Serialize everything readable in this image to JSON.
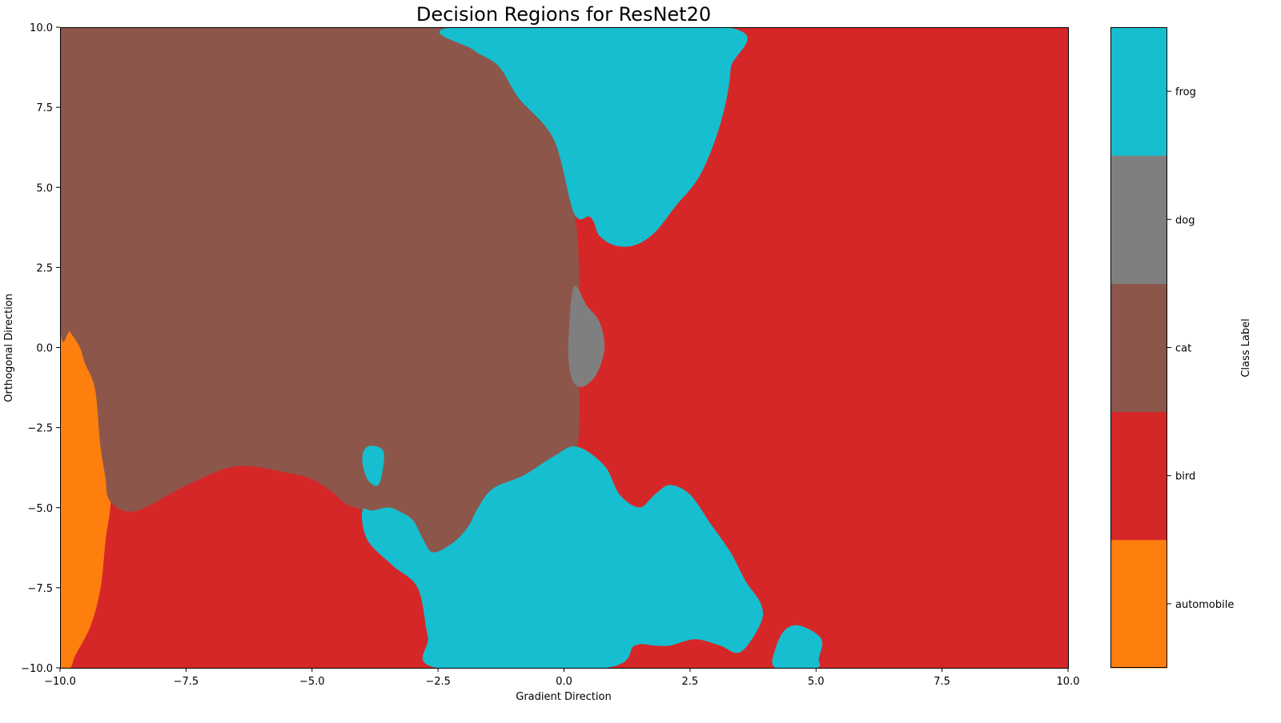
{
  "chart_data": {
    "type": "heatmap",
    "title": "Decision Regions for ResNet20",
    "xlabel": "Gradient Direction",
    "ylabel": "Orthogonal Direction",
    "xlim": [
      -10,
      10
    ],
    "ylim": [
      -10,
      10
    ],
    "xticks": [
      -10,
      -7.5,
      -5,
      -2.5,
      0,
      2.5,
      5,
      7.5,
      10
    ],
    "yticks": [
      -10,
      -7.5,
      -5,
      -2.5,
      0,
      2.5,
      5,
      7.5,
      10
    ],
    "xtick_labels": [
      "−10.0",
      "−7.5",
      "−5.0",
      "−2.5",
      "0.0",
      "2.5",
      "5.0",
      "7.5",
      "10.0"
    ],
    "ytick_labels": [
      "−10.0",
      "−7.5",
      "−5.0",
      "−2.5",
      "0.0",
      "2.5",
      "5.0",
      "7.5",
      "10.0"
    ],
    "grid": false,
    "background_class": "bird",
    "classes": [
      {
        "label": "automobile",
        "color": "#ff7f0e"
      },
      {
        "label": "bird",
        "color": "#d62728"
      },
      {
        "label": "cat",
        "color": "#8c564b"
      },
      {
        "label": "dog",
        "color": "#7f7f7f"
      },
      {
        "label": "frog",
        "color": "#17becf"
      }
    ],
    "colorbar": {
      "label": "Class Label",
      "placement": "right"
    },
    "regions": [
      {
        "class": "automobile",
        "boundary": [
          [
            -10,
            1
          ],
          [
            -9.8,
            0.5
          ],
          [
            -9.6,
            0
          ],
          [
            -9.5,
            -0.5
          ],
          [
            -9.3,
            -1.3
          ],
          [
            -9.2,
            -3
          ],
          [
            -9.1,
            -4
          ],
          [
            -9,
            -4.8
          ],
          [
            -9.1,
            -6
          ],
          [
            -9.2,
            -7.5
          ],
          [
            -9.4,
            -8.7
          ],
          [
            -9.7,
            -9.6
          ],
          [
            -9.8,
            -10
          ],
          [
            -10,
            -10
          ]
        ]
      },
      {
        "class": "cat",
        "boundary": [
          [
            -10,
            10
          ],
          [
            -2.15,
            10
          ],
          [
            -1.8,
            9.3
          ],
          [
            -1.3,
            8.8
          ],
          [
            -0.9,
            7.8
          ],
          [
            -0.2,
            6.5
          ],
          [
            0.2,
            4.2
          ],
          [
            0.3,
            2
          ],
          [
            0.3,
            -0.5
          ],
          [
            0.25,
            -3.1
          ],
          [
            -0.2,
            -3.4
          ],
          [
            -0.8,
            -4
          ],
          [
            -1.4,
            -4.4
          ],
          [
            -1.7,
            -5
          ],
          [
            -1.9,
            -5.6
          ],
          [
            -2.2,
            -6.1
          ],
          [
            -2.6,
            -6.4
          ],
          [
            -2.8,
            -6
          ],
          [
            -3,
            -5.4
          ],
          [
            -3.3,
            -5.1
          ],
          [
            -3.5,
            -5
          ],
          [
            -3.8,
            -5.1
          ],
          [
            -4.3,
            -4.9
          ],
          [
            -4.6,
            -4.5
          ],
          [
            -5,
            -4.1
          ],
          [
            -5.5,
            -3.9
          ],
          [
            -6.5,
            -3.7
          ],
          [
            -7.5,
            -4.3
          ],
          [
            -8.5,
            -5.1
          ],
          [
            -9,
            -4.8
          ],
          [
            -9.1,
            -4
          ],
          [
            -9.2,
            -3
          ],
          [
            -9.3,
            -1.3
          ],
          [
            -9.5,
            -0.5
          ],
          [
            -9.6,
            0
          ],
          [
            -9.8,
            0.5
          ],
          [
            -10,
            1
          ]
        ]
      },
      {
        "class": "frog",
        "boundary": [
          [
            -2.15,
            10
          ],
          [
            3.2,
            10
          ],
          [
            3.3,
            8.7
          ],
          [
            3.1,
            7
          ],
          [
            2.7,
            5.4
          ],
          [
            2.2,
            4.4
          ],
          [
            1.8,
            3.6
          ],
          [
            1.4,
            3.2
          ],
          [
            1,
            3.2
          ],
          [
            0.7,
            3.5
          ],
          [
            0.6,
            3.9
          ],
          [
            0.5,
            4.1
          ],
          [
            0.2,
            4.2
          ],
          [
            -0.2,
            6.5
          ],
          [
            -0.9,
            7.8
          ],
          [
            -1.3,
            8.8
          ],
          [
            -1.8,
            9.3
          ]
        ]
      },
      {
        "class": "dog",
        "boundary": [
          [
            0.2,
            1.9
          ],
          [
            0.45,
            1.3
          ],
          [
            0.7,
            0.8
          ],
          [
            0.8,
            0
          ],
          [
            0.65,
            -0.8
          ],
          [
            0.4,
            -1.2
          ],
          [
            0.2,
            -1.1
          ],
          [
            0.1,
            -0.5
          ],
          [
            0.1,
            0.5
          ]
        ]
      },
      {
        "class": "frog",
        "boundary": [
          [
            0.25,
            -3.1
          ],
          [
            0.8,
            -3.7
          ],
          [
            1.1,
            -4.6
          ],
          [
            1.5,
            -5
          ],
          [
            1.8,
            -4.6
          ],
          [
            2.1,
            -4.3
          ],
          [
            2.5,
            -4.6
          ],
          [
            2.9,
            -5.5
          ],
          [
            3.3,
            -6.4
          ],
          [
            3.6,
            -7.3
          ],
          [
            3.9,
            -8
          ],
          [
            3.9,
            -8.6
          ],
          [
            3.5,
            -9.5
          ],
          [
            3.1,
            -9.3
          ],
          [
            2.6,
            -9.1
          ],
          [
            2.1,
            -9.3
          ],
          [
            1.8,
            -9.3
          ],
          [
            1.4,
            -9.3
          ],
          [
            0.8,
            -10
          ],
          [
            -2.5,
            -10
          ],
          [
            -2.7,
            -9
          ],
          [
            -2.9,
            -7.5
          ],
          [
            -3.4,
            -6.8
          ],
          [
            -3.9,
            -6
          ],
          [
            -4,
            -5.1
          ],
          [
            -3.8,
            -5.1
          ],
          [
            -3.5,
            -5
          ],
          [
            -3.3,
            -5.1
          ],
          [
            -3,
            -5.4
          ],
          [
            -2.8,
            -6
          ],
          [
            -2.6,
            -6.4
          ],
          [
            -2.2,
            -6.1
          ],
          [
            -1.9,
            -5.6
          ],
          [
            -1.7,
            -5
          ],
          [
            -1.4,
            -4.4
          ],
          [
            -0.8,
            -4
          ],
          [
            -0.2,
            -3.4
          ]
        ]
      },
      {
        "class": "frog",
        "boundary": [
          [
            -3.9,
            -3.1
          ],
          [
            -3.6,
            -3.2
          ],
          [
            -3.6,
            -3.8
          ],
          [
            -3.7,
            -4.3
          ],
          [
            -3.9,
            -4.1
          ],
          [
            -4,
            -3.5
          ]
        ]
      },
      {
        "class": "frog",
        "boundary": [
          [
            4.2,
            -10
          ],
          [
            4.2,
            -9.4
          ],
          [
            4.4,
            -8.8
          ],
          [
            4.7,
            -8.7
          ],
          [
            5.1,
            -9.1
          ],
          [
            5.05,
            -9.7
          ],
          [
            5,
            -10
          ]
        ]
      }
    ]
  }
}
